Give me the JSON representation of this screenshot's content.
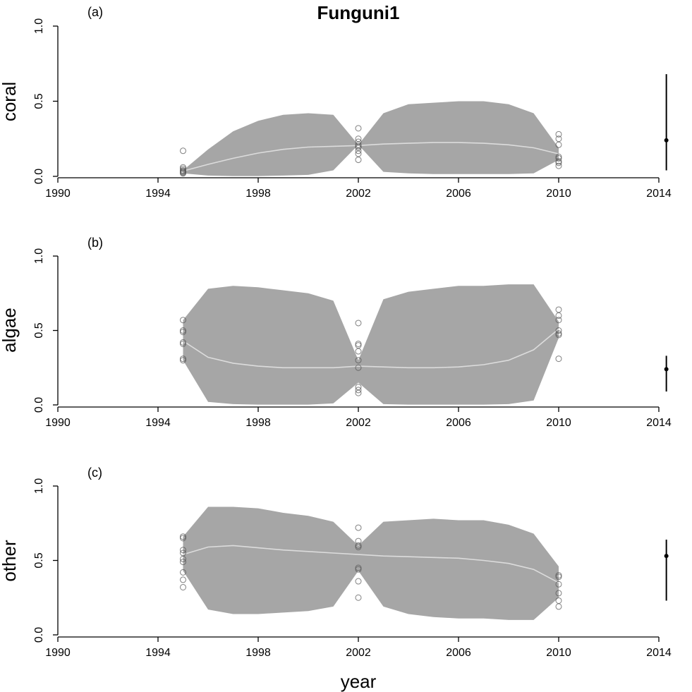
{
  "figure": {
    "title": "Funguni1",
    "xlabel": "year"
  },
  "chart_data": [
    {
      "type": "area",
      "panel_label": "(a)",
      "ylabel": "coral",
      "xlim": [
        1990,
        2014
      ],
      "ylim": [
        0,
        1
      ],
      "xticks": [
        1990,
        1994,
        1998,
        2002,
        2006,
        2010,
        2014
      ],
      "yticks": [
        "0.0",
        "0.5",
        "1.0"
      ],
      "band": {
        "x": [
          1995,
          1996,
          1997,
          1998,
          1999,
          2000,
          2001,
          2002,
          2003,
          2004,
          2005,
          2006,
          2007,
          2008,
          2009,
          2010
        ],
        "lower": [
          0.02,
          0.005,
          0.002,
          0.002,
          0.005,
          0.01,
          0.04,
          0.21,
          0.03,
          0.02,
          0.015,
          0.015,
          0.015,
          0.015,
          0.02,
          0.11
        ],
        "upper": [
          0.04,
          0.18,
          0.3,
          0.37,
          0.41,
          0.42,
          0.41,
          0.21,
          0.42,
          0.48,
          0.49,
          0.5,
          0.5,
          0.48,
          0.42,
          0.19
        ]
      },
      "series": [
        {
          "x": [
            1995,
            1996,
            1997,
            1998,
            1999,
            2000,
            2001,
            2002,
            2003,
            2004,
            2005,
            2006,
            2007,
            2008,
            2009,
            2010
          ],
          "values": [
            0.035,
            0.08,
            0.12,
            0.155,
            0.18,
            0.195,
            0.2,
            0.205,
            0.215,
            0.22,
            0.225,
            0.225,
            0.22,
            0.21,
            0.19,
            0.15
          ]
        }
      ],
      "points": [
        {
          "x": 1995,
          "values": [
            0.17,
            0.06,
            0.05,
            0.04,
            0.035,
            0.03,
            0.025,
            0.02
          ]
        },
        {
          "x": 2002,
          "values": [
            0.32,
            0.25,
            0.23,
            0.21,
            0.2,
            0.19,
            0.17,
            0.15,
            0.11
          ]
        },
        {
          "x": 2010,
          "values": [
            0.28,
            0.25,
            0.21,
            0.13,
            0.12,
            0.1,
            0.09,
            0.07
          ]
        }
      ],
      "estimate": {
        "x": 2014.3,
        "y": 0.24,
        "low": 0.04,
        "high": 0.68
      }
    },
    {
      "type": "area",
      "panel_label": "(b)",
      "ylabel": "algae",
      "xlim": [
        1990,
        2014
      ],
      "ylim": [
        0,
        1
      ],
      "xticks": [
        1990,
        1994,
        1998,
        2002,
        2006,
        2010,
        2014
      ],
      "yticks": [
        "0.0",
        "0.5",
        "1.0"
      ],
      "band": {
        "x": [
          1995,
          1996,
          1997,
          1998,
          1999,
          2000,
          2001,
          2002,
          2003,
          2004,
          2005,
          2006,
          2007,
          2008,
          2009,
          2010
        ],
        "lower": [
          0.3,
          0.02,
          0.005,
          0.002,
          0.002,
          0.002,
          0.01,
          0.15,
          0.005,
          0.002,
          0.002,
          0.002,
          0.002,
          0.005,
          0.03,
          0.45
        ],
        "upper": [
          0.57,
          0.78,
          0.8,
          0.79,
          0.77,
          0.75,
          0.7,
          0.3,
          0.71,
          0.76,
          0.78,
          0.8,
          0.8,
          0.81,
          0.81,
          0.56
        ]
      },
      "series": [
        {
          "x": [
            1995,
            1996,
            1997,
            1998,
            1999,
            2000,
            2001,
            2002,
            2003,
            2004,
            2005,
            2006,
            2007,
            2008,
            2009,
            2010
          ],
          "values": [
            0.43,
            0.32,
            0.28,
            0.26,
            0.25,
            0.25,
            0.25,
            0.26,
            0.255,
            0.25,
            0.25,
            0.255,
            0.27,
            0.3,
            0.37,
            0.51
          ]
        }
      ],
      "points": [
        {
          "x": 1995,
          "values": [
            0.57,
            0.5,
            0.49,
            0.42,
            0.41,
            0.31,
            0.3
          ]
        },
        {
          "x": 2002,
          "values": [
            0.55,
            0.41,
            0.4,
            0.36,
            0.3,
            0.25,
            0.12,
            0.1,
            0.08
          ]
        },
        {
          "x": 2010,
          "values": [
            0.64,
            0.6,
            0.57,
            0.5,
            0.48,
            0.47,
            0.31
          ]
        }
      ],
      "estimate": {
        "x": 2014.3,
        "y": 0.24,
        "low": 0.09,
        "high": 0.33
      }
    },
    {
      "type": "area",
      "panel_label": "(c)",
      "ylabel": "other",
      "xlim": [
        1990,
        2014
      ],
      "ylim": [
        0,
        1
      ],
      "xticks": [
        1990,
        1994,
        1998,
        2002,
        2006,
        2010,
        2014
      ],
      "yticks": [
        "0.0",
        "0.5",
        "1.0"
      ],
      "band": {
        "x": [
          1995,
          1996,
          1997,
          1998,
          1999,
          2000,
          2001,
          2002,
          2003,
          2004,
          2005,
          2006,
          2007,
          2008,
          2009,
          2010
        ],
        "lower": [
          0.43,
          0.17,
          0.14,
          0.14,
          0.15,
          0.16,
          0.19,
          0.43,
          0.19,
          0.14,
          0.12,
          0.11,
          0.11,
          0.1,
          0.1,
          0.25
        ],
        "upper": [
          0.66,
          0.86,
          0.86,
          0.85,
          0.82,
          0.8,
          0.76,
          0.6,
          0.76,
          0.77,
          0.78,
          0.77,
          0.77,
          0.74,
          0.68,
          0.46
        ]
      },
      "series": [
        {
          "x": [
            1995,
            1996,
            1997,
            1998,
            1999,
            2000,
            2001,
            2002,
            2003,
            2004,
            2005,
            2006,
            2007,
            2008,
            2009,
            2010
          ],
          "values": [
            0.54,
            0.59,
            0.6,
            0.585,
            0.57,
            0.56,
            0.55,
            0.54,
            0.53,
            0.525,
            0.52,
            0.515,
            0.5,
            0.48,
            0.44,
            0.35
          ]
        }
      ],
      "points": [
        {
          "x": 1995,
          "values": [
            0.66,
            0.65,
            0.57,
            0.55,
            0.51,
            0.49,
            0.42,
            0.37,
            0.32
          ]
        },
        {
          "x": 2002,
          "values": [
            0.72,
            0.63,
            0.6,
            0.59,
            0.45,
            0.44,
            0.36,
            0.25
          ]
        },
        {
          "x": 2010,
          "values": [
            0.4,
            0.39,
            0.34,
            0.28,
            0.23,
            0.19
          ]
        }
      ],
      "estimate": {
        "x": 2014.3,
        "y": 0.53,
        "low": 0.23,
        "high": 0.64
      }
    }
  ],
  "colors": {
    "band": "#a6a6a6",
    "median_line": "#dcdcdc",
    "points": "#555555",
    "estimate": "#000000"
  }
}
